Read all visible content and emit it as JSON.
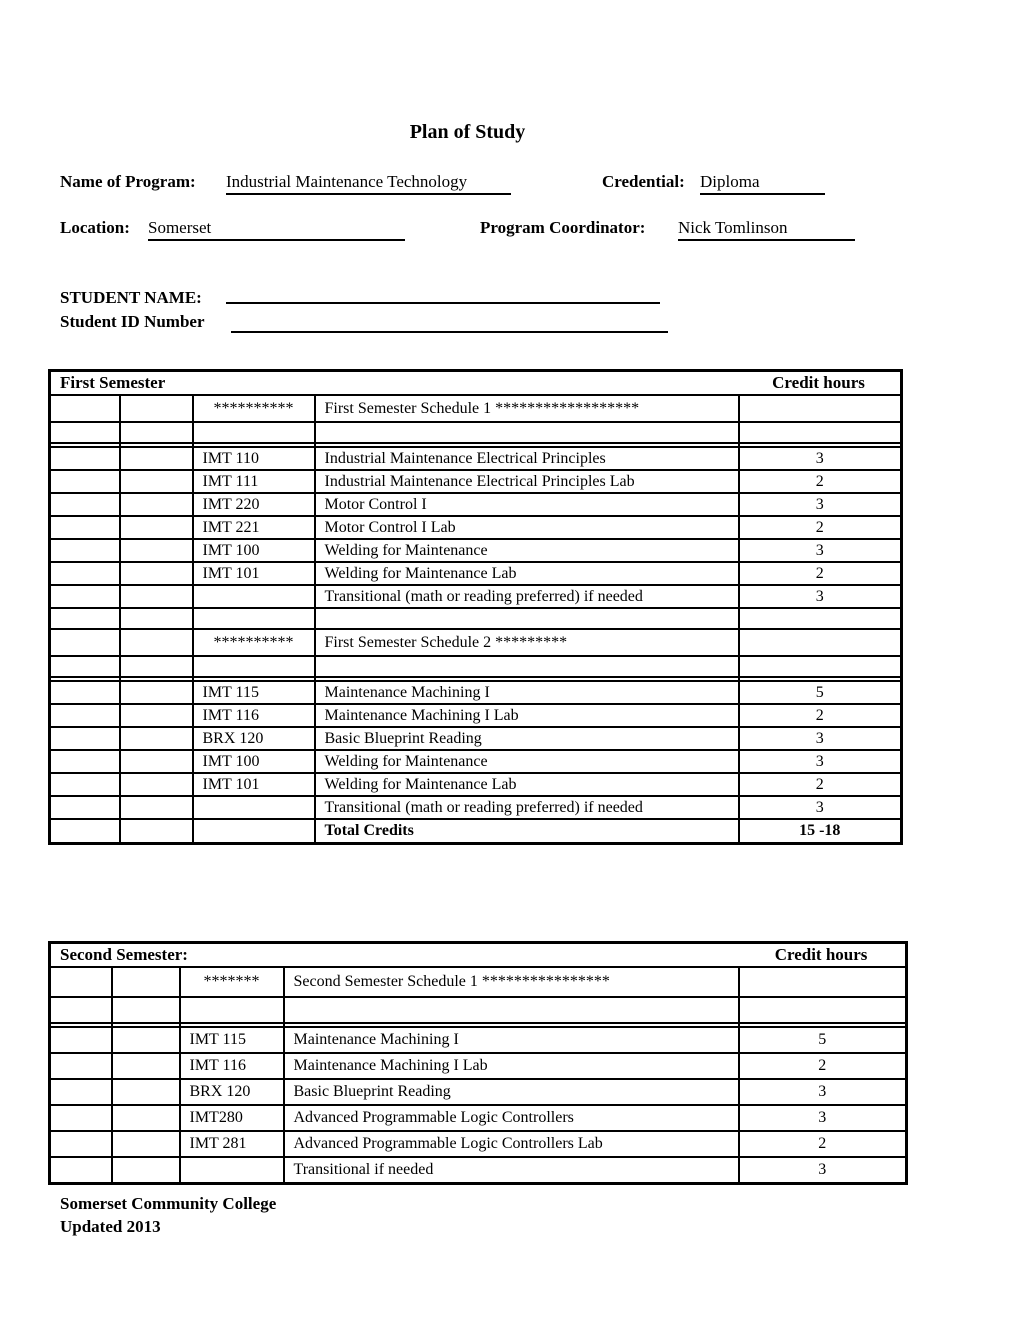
{
  "doc": {
    "title": "Plan of Study",
    "program_label": "Name of Program:",
    "program_value": "Industrial Maintenance Technology",
    "credential_label": "Credential:",
    "credential_value": "Diploma",
    "location_label": "Location:",
    "location_value": "Somerset",
    "coordinator_label": "Program Coordinator:",
    "coordinator_value": "Nick Tomlinson",
    "student_name_label": "STUDENT NAME:",
    "student_id_label": "Student ID Number",
    "footer_line1": "Somerset Community College",
    "footer_line2": "Updated 2013"
  },
  "first_semester": {
    "header_left": "First Semester",
    "header_right": "Credit hours",
    "rows": [
      {
        "type": "schedule",
        "code": "**********",
        "title": "First Semester Schedule 1 ******************",
        "credits": ""
      },
      {
        "type": "empty",
        "code": "",
        "title": "",
        "credits": ""
      },
      {
        "type": "spacer",
        "code": "",
        "title": "",
        "credits": ""
      },
      {
        "type": "course",
        "code": "IMT 110",
        "title": "Industrial Maintenance Electrical Principles",
        "credits": "3"
      },
      {
        "type": "course",
        "code": "IMT 111",
        "title": "Industrial Maintenance Electrical Principles Lab",
        "credits": "2"
      },
      {
        "type": "course",
        "code": "IMT 220",
        "title": "Motor Control I",
        "credits": "3"
      },
      {
        "type": "course",
        "code": "IMT 221",
        "title": "Motor Control I Lab",
        "credits": "2"
      },
      {
        "type": "course",
        "code": "IMT 100",
        "title": "Welding for Maintenance",
        "credits": "3"
      },
      {
        "type": "course",
        "code": "IMT 101",
        "title": "Welding for Maintenance Lab",
        "credits": "2"
      },
      {
        "type": "course",
        "code": "",
        "title": "Transitional (math or reading preferred) if needed",
        "credits": "3"
      },
      {
        "type": "empty",
        "code": "",
        "title": "",
        "credits": ""
      },
      {
        "type": "schedule",
        "code": "**********",
        "title": "First Semester Schedule 2 *********",
        "credits": ""
      },
      {
        "type": "empty",
        "code": "",
        "title": "",
        "credits": ""
      },
      {
        "type": "spacer",
        "code": "",
        "title": "",
        "credits": ""
      },
      {
        "type": "course",
        "code": "IMT 115",
        "title": "Maintenance Machining I",
        "credits": "5"
      },
      {
        "type": "course",
        "code": "IMT 116",
        "title": "Maintenance Machining I Lab",
        "credits": "2"
      },
      {
        "type": "course",
        "code": "BRX 120",
        "title": "Basic Blueprint Reading",
        "credits": "3"
      },
      {
        "type": "course",
        "code": "IMT 100",
        "title": "Welding for Maintenance",
        "credits": "3"
      },
      {
        "type": "course",
        "code": "IMT 101",
        "title": "Welding for Maintenance Lab",
        "credits": "2"
      },
      {
        "type": "course",
        "code": "",
        "title": "Transitional (math or reading preferred) if needed",
        "credits": "3"
      },
      {
        "type": "total",
        "code": "",
        "title": "Total Credits",
        "credits": "15 -18"
      }
    ]
  },
  "second_semester": {
    "header_left": "Second Semester:",
    "header_right": "Credit hours",
    "rows": [
      {
        "type": "schedule",
        "code": "*******",
        "title": "Second Semester Schedule 1 ****************",
        "credits": ""
      },
      {
        "type": "empty",
        "code": "",
        "title": "",
        "credits": ""
      },
      {
        "type": "spacer",
        "code": "",
        "title": "",
        "credits": ""
      },
      {
        "type": "course",
        "code": "IMT 115",
        "title": "Maintenance Machining I",
        "credits": "5"
      },
      {
        "type": "course",
        "code": "IMT 116",
        "title": "Maintenance Machining I Lab",
        "credits": "2"
      },
      {
        "type": "course",
        "code": "BRX 120",
        "title": "Basic Blueprint Reading",
        "credits": "3"
      },
      {
        "type": "course",
        "code": "IMT280",
        "title": "Advanced Programmable Logic Controllers",
        "credits": "3"
      },
      {
        "type": "course",
        "code": "IMT 281",
        "title": "Advanced Programmable Logic Controllers Lab",
        "credits": "2"
      },
      {
        "type": "course",
        "code": "",
        "title": "Transitional if needed",
        "credits": "3"
      }
    ]
  }
}
